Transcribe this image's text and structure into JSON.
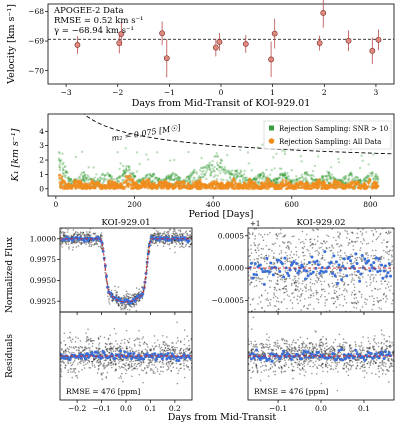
{
  "chart_data": [
    {
      "id": "rv",
      "type": "scatter",
      "xlabel": "Days from Mid-Transit of KOI-929.01",
      "ylabel": "Velocity [km s⁻¹]",
      "xlim": [
        -3.35,
        3.35
      ],
      "ylim": [
        -70.45,
        -67.75
      ],
      "xticks": [
        -3,
        -2,
        -1,
        0,
        1,
        2,
        3
      ],
      "yticks": [
        -70,
        -69,
        -68
      ],
      "annotation": [
        "APOGEE-2 Data",
        "RMSE = 0.52 km s⁻¹",
        "γ = −68.94 km s⁻¹"
      ],
      "gamma": -68.94,
      "points": [
        {
          "x": -2.78,
          "y": -69.13,
          "err": 0.3
        },
        {
          "x": -1.97,
          "y": -69.07,
          "err": 0.35
        },
        {
          "x": -1.93,
          "y": -68.76,
          "err": 0.4
        },
        {
          "x": -1.14,
          "y": -68.74,
          "err": 0.4
        },
        {
          "x": -1.05,
          "y": -69.58,
          "err": 0.65
        },
        {
          "x": -0.1,
          "y": -69.22,
          "err": 0.3
        },
        {
          "x": -0.03,
          "y": -69.03,
          "err": 0.3
        },
        {
          "x": 0.48,
          "y": -69.1,
          "err": 0.3
        },
        {
          "x": 0.97,
          "y": -69.62,
          "err": 0.6
        },
        {
          "x": 1.04,
          "y": -68.75,
          "err": 0.5
        },
        {
          "x": 1.91,
          "y": -69.07,
          "err": 0.25
        },
        {
          "x": 1.98,
          "y": -68.05,
          "err": 0.5
        },
        {
          "x": 2.47,
          "y": -68.99,
          "err": 0.35
        },
        {
          "x": 2.93,
          "y": -69.33,
          "err": 0.45
        },
        {
          "x": 3.05,
          "y": -68.96,
          "err": 0.35
        }
      ],
      "colors": {
        "point": "#e08a7e",
        "edge": "#7a2a2a",
        "err": "#b84a4a",
        "gamma_line": "#000000"
      }
    },
    {
      "id": "period",
      "type": "scatter",
      "xlabel": "Period [Days]",
      "ylabel": "K₁ [km s⁻¹]",
      "xlim": [
        -20,
        860
      ],
      "ylim": [
        -0.5,
        5.2
      ],
      "xticks": [
        0,
        200,
        400,
        600,
        800
      ],
      "yticks": [
        0,
        1,
        2,
        3,
        4
      ],
      "curve_label": "m₂ = 0.075 [M☉]",
      "legend": [
        "Rejection Sampling: SNR > 10",
        "Rejection Sampling: All Data"
      ],
      "legend_position": "upper-right",
      "colors": {
        "green": "#3a9e3a",
        "orange": "#f08c1e"
      }
    },
    {
      "id": "flux1",
      "type": "scatter",
      "title": "KOI-929.01",
      "ylabel": "Normalized Flux",
      "xlim": [
        -0.27,
        0.27
      ],
      "ylim": [
        0.9912,
        1.0013
      ],
      "yticks": [
        1.0,
        0.9975,
        0.995,
        0.9925
      ],
      "ytick_labels": [
        "1.0000",
        "0.9975",
        "0.9950",
        "0.9925"
      ],
      "transit": {
        "depth": 0.0067,
        "half_duration": 0.105,
        "ingress": 0.04
      }
    },
    {
      "id": "flux2",
      "type": "scatter",
      "title": "KOI-929.02",
      "offset_label": "+1",
      "xlim": [
        -0.17,
        0.17
      ],
      "ylim": [
        -0.00068,
        0.00062
      ],
      "yticks": [
        0.0005,
        0.0,
        -0.0005
      ],
      "ytick_labels": [
        "0.0005",
        "0.0000",
        "−0.0005"
      ]
    },
    {
      "id": "res1",
      "type": "scatter",
      "ylabel": "Residuals",
      "xlim": [
        -0.27,
        0.27
      ],
      "ylim": [
        -1,
        1
      ],
      "xticks": [
        -0.2,
        -0.1,
        0.0,
        0.1,
        0.2
      ],
      "xtick_labels": [
        "−0.2",
        "−0.1",
        "0.0",
        "0.1",
        "0.2"
      ],
      "annotation": "RMSE = 476 [ppm]"
    },
    {
      "id": "res2",
      "type": "scatter",
      "xlim": [
        -0.17,
        0.17
      ],
      "ylim": [
        -1,
        1
      ],
      "xticks": [
        -0.1,
        0.0,
        0.1
      ],
      "xtick_labels": [
        "−0.1",
        "0.0",
        "0.1"
      ],
      "annotation": "RMSE = 476 [ppm]"
    }
  ],
  "shared_xlabel": "Days from Mid-Transit",
  "colors": {
    "raw": "#1a1a1a",
    "binned": "#3a6fd8",
    "model": "#d62728"
  }
}
